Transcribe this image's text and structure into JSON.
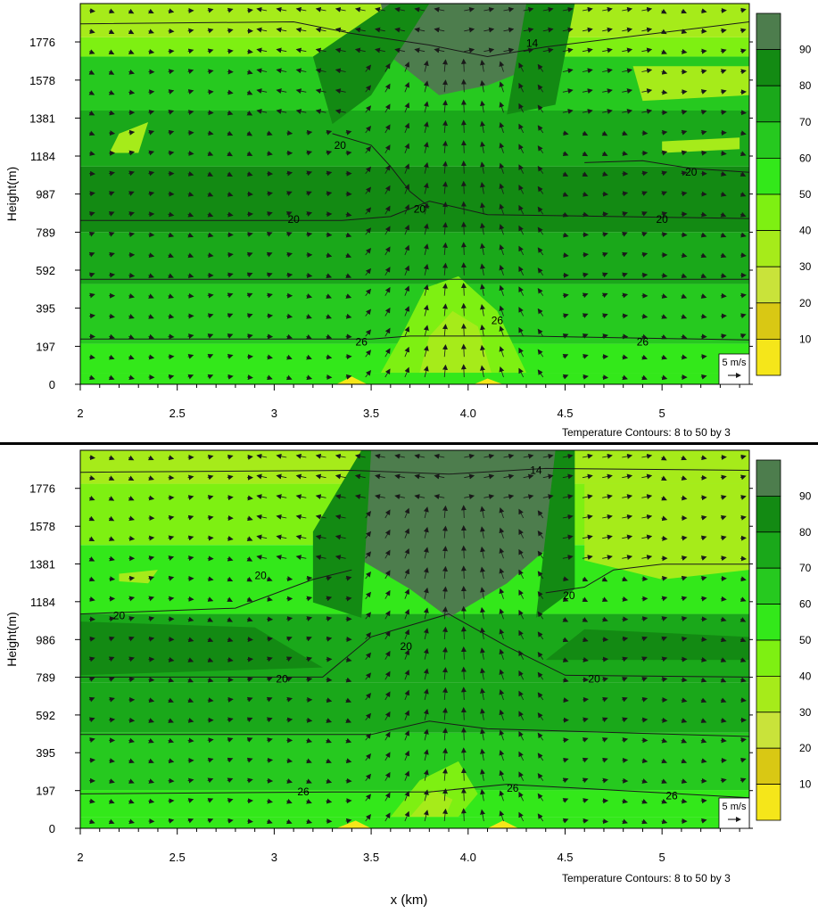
{
  "colors": {
    "levels": [
      "#ffff2e",
      "#f5e61a",
      "#d9c814",
      "#c9e33a",
      "#a6eb1a",
      "#7ef012",
      "#33e81a",
      "#26c91f",
      "#1aa81a",
      "#138a13",
      "#4d7d4d"
    ],
    "contour_line": "#1a1a1a",
    "arrow": "#1a1a1a"
  },
  "chart_data": [
    {
      "type": "contour",
      "panel": "top",
      "ylabel": "Height(m)",
      "xlabel": "",
      "xlim": [
        2,
        5.45
      ],
      "ylim": [
        0,
        1975
      ],
      "x_ticks": [
        "2",
        "2.5",
        "3",
        "3.5",
        "4.0",
        "4.5",
        "5"
      ],
      "y_ticks": [
        "0",
        "197",
        "395",
        "592",
        "789",
        "987",
        "1184",
        "1381",
        "1578",
        "1776"
      ],
      "colorbar": {
        "levels": [
          "10",
          "20",
          "30",
          "40",
          "50",
          "60",
          "70",
          "80",
          "90"
        ]
      },
      "contour_labels": [
        {
          "text": "14",
          "x": 4.33,
          "y": 1770
        },
        {
          "text": "20",
          "x": 3.34,
          "y": 1240
        },
        {
          "text": "20",
          "x": 3.1,
          "y": 855
        },
        {
          "text": "20",
          "x": 3.75,
          "y": 910
        },
        {
          "text": "20",
          "x": 5.0,
          "y": 855
        },
        {
          "text": "20",
          "x": 5.15,
          "y": 1100
        },
        {
          "text": "26",
          "x": 3.45,
          "y": 220
        },
        {
          "text": "26",
          "x": 4.15,
          "y": 330
        },
        {
          "text": "26",
          "x": 4.9,
          "y": 220
        }
      ],
      "vector_reference": "5 m/s",
      "note": "Temperature Contours: 8 to 50 by 3"
    },
    {
      "type": "contour",
      "panel": "bottom",
      "ylabel": "Height(m)",
      "xlabel": "x (km)",
      "xlim": [
        2,
        5.45
      ],
      "ylim": [
        0,
        1975
      ],
      "x_ticks": [
        "2",
        "2.5",
        "3",
        "3.5",
        "4.0",
        "4.5",
        "5"
      ],
      "y_ticks": [
        "0",
        "197",
        "395",
        "592",
        "789",
        "986",
        "1184",
        "1381",
        "1578",
        "1776"
      ],
      "colorbar": {
        "levels": [
          "10",
          "20",
          "30",
          "40",
          "50",
          "60",
          "70",
          "80",
          "90"
        ]
      },
      "contour_labels": [
        {
          "text": "14",
          "x": 4.35,
          "y": 1870
        },
        {
          "text": "20",
          "x": 2.93,
          "y": 1320
        },
        {
          "text": "20",
          "x": 2.2,
          "y": 1110
        },
        {
          "text": "20",
          "x": 3.04,
          "y": 780
        },
        {
          "text": "20",
          "x": 3.68,
          "y": 950
        },
        {
          "text": "20",
          "x": 4.52,
          "y": 1215
        },
        {
          "text": "20",
          "x": 4.65,
          "y": 780
        },
        {
          "text": "26",
          "x": 3.15,
          "y": 190
        },
        {
          "text": "26",
          "x": 4.23,
          "y": 210
        },
        {
          "text": "26",
          "x": 5.05,
          "y": 170
        }
      ],
      "vector_reference": "5 m/s",
      "note": "Temperature Contours: 8 to 50 by 3"
    }
  ]
}
